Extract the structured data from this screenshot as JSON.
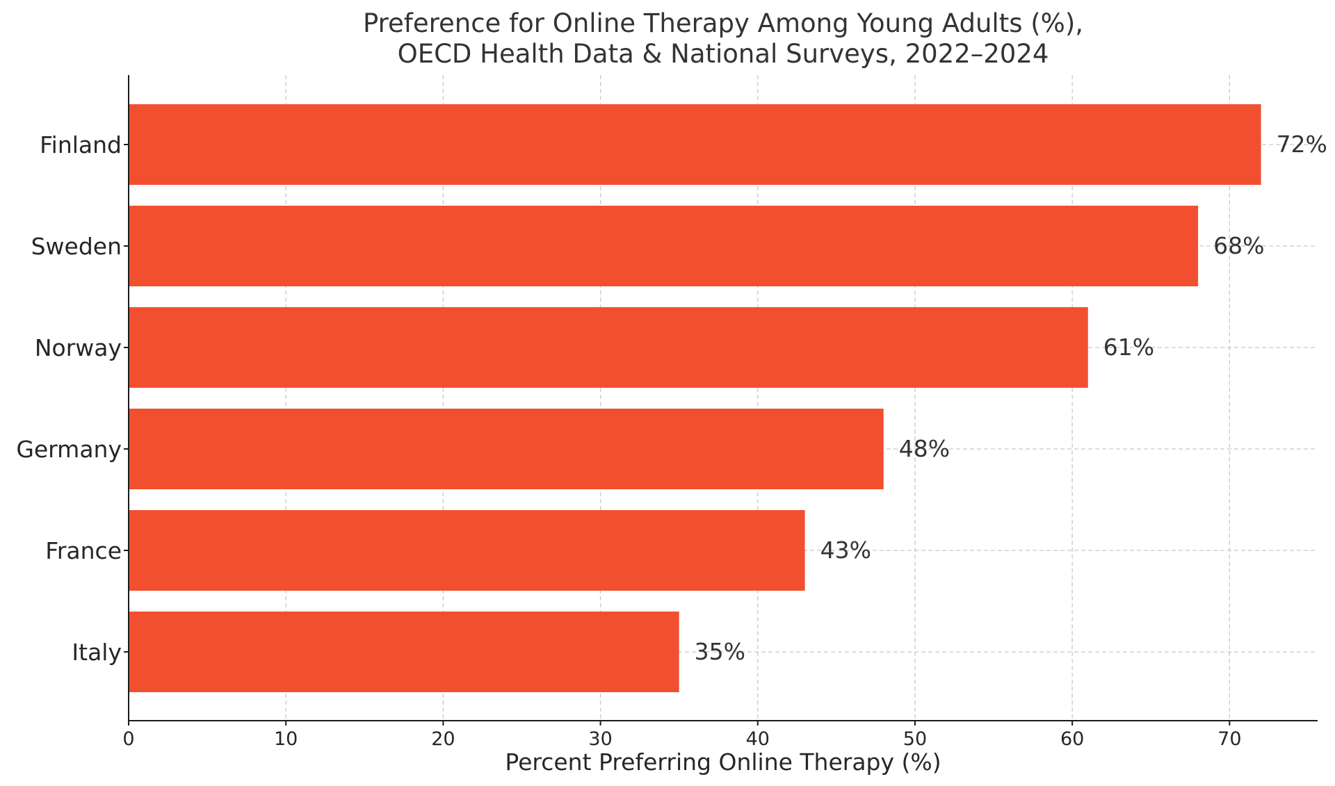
{
  "chart_data": {
    "type": "bar",
    "orientation": "horizontal",
    "title_lines": [
      "Preference for Online Therapy Among Young Adults (%),",
      "OECD Health Data & National Surveys, 2022–2024"
    ],
    "xlabel": "Percent Preferring Online Therapy (%)",
    "ylabel": "",
    "categories": [
      "Finland",
      "Sweden",
      "Norway",
      "Germany",
      "France",
      "Italy"
    ],
    "values": [
      72,
      68,
      61,
      48,
      43,
      35
    ],
    "data_labels": [
      "72%",
      "68%",
      "61%",
      "48%",
      "43%",
      "35%"
    ],
    "xlim": [
      0,
      75.6
    ],
    "xticks": [
      0,
      10,
      20,
      30,
      40,
      50,
      60,
      70
    ],
    "xtick_labels": [
      "0",
      "10",
      "20",
      "30",
      "40",
      "50",
      "60",
      "70"
    ],
    "grid": true,
    "bar_color": "#f24f30"
  }
}
